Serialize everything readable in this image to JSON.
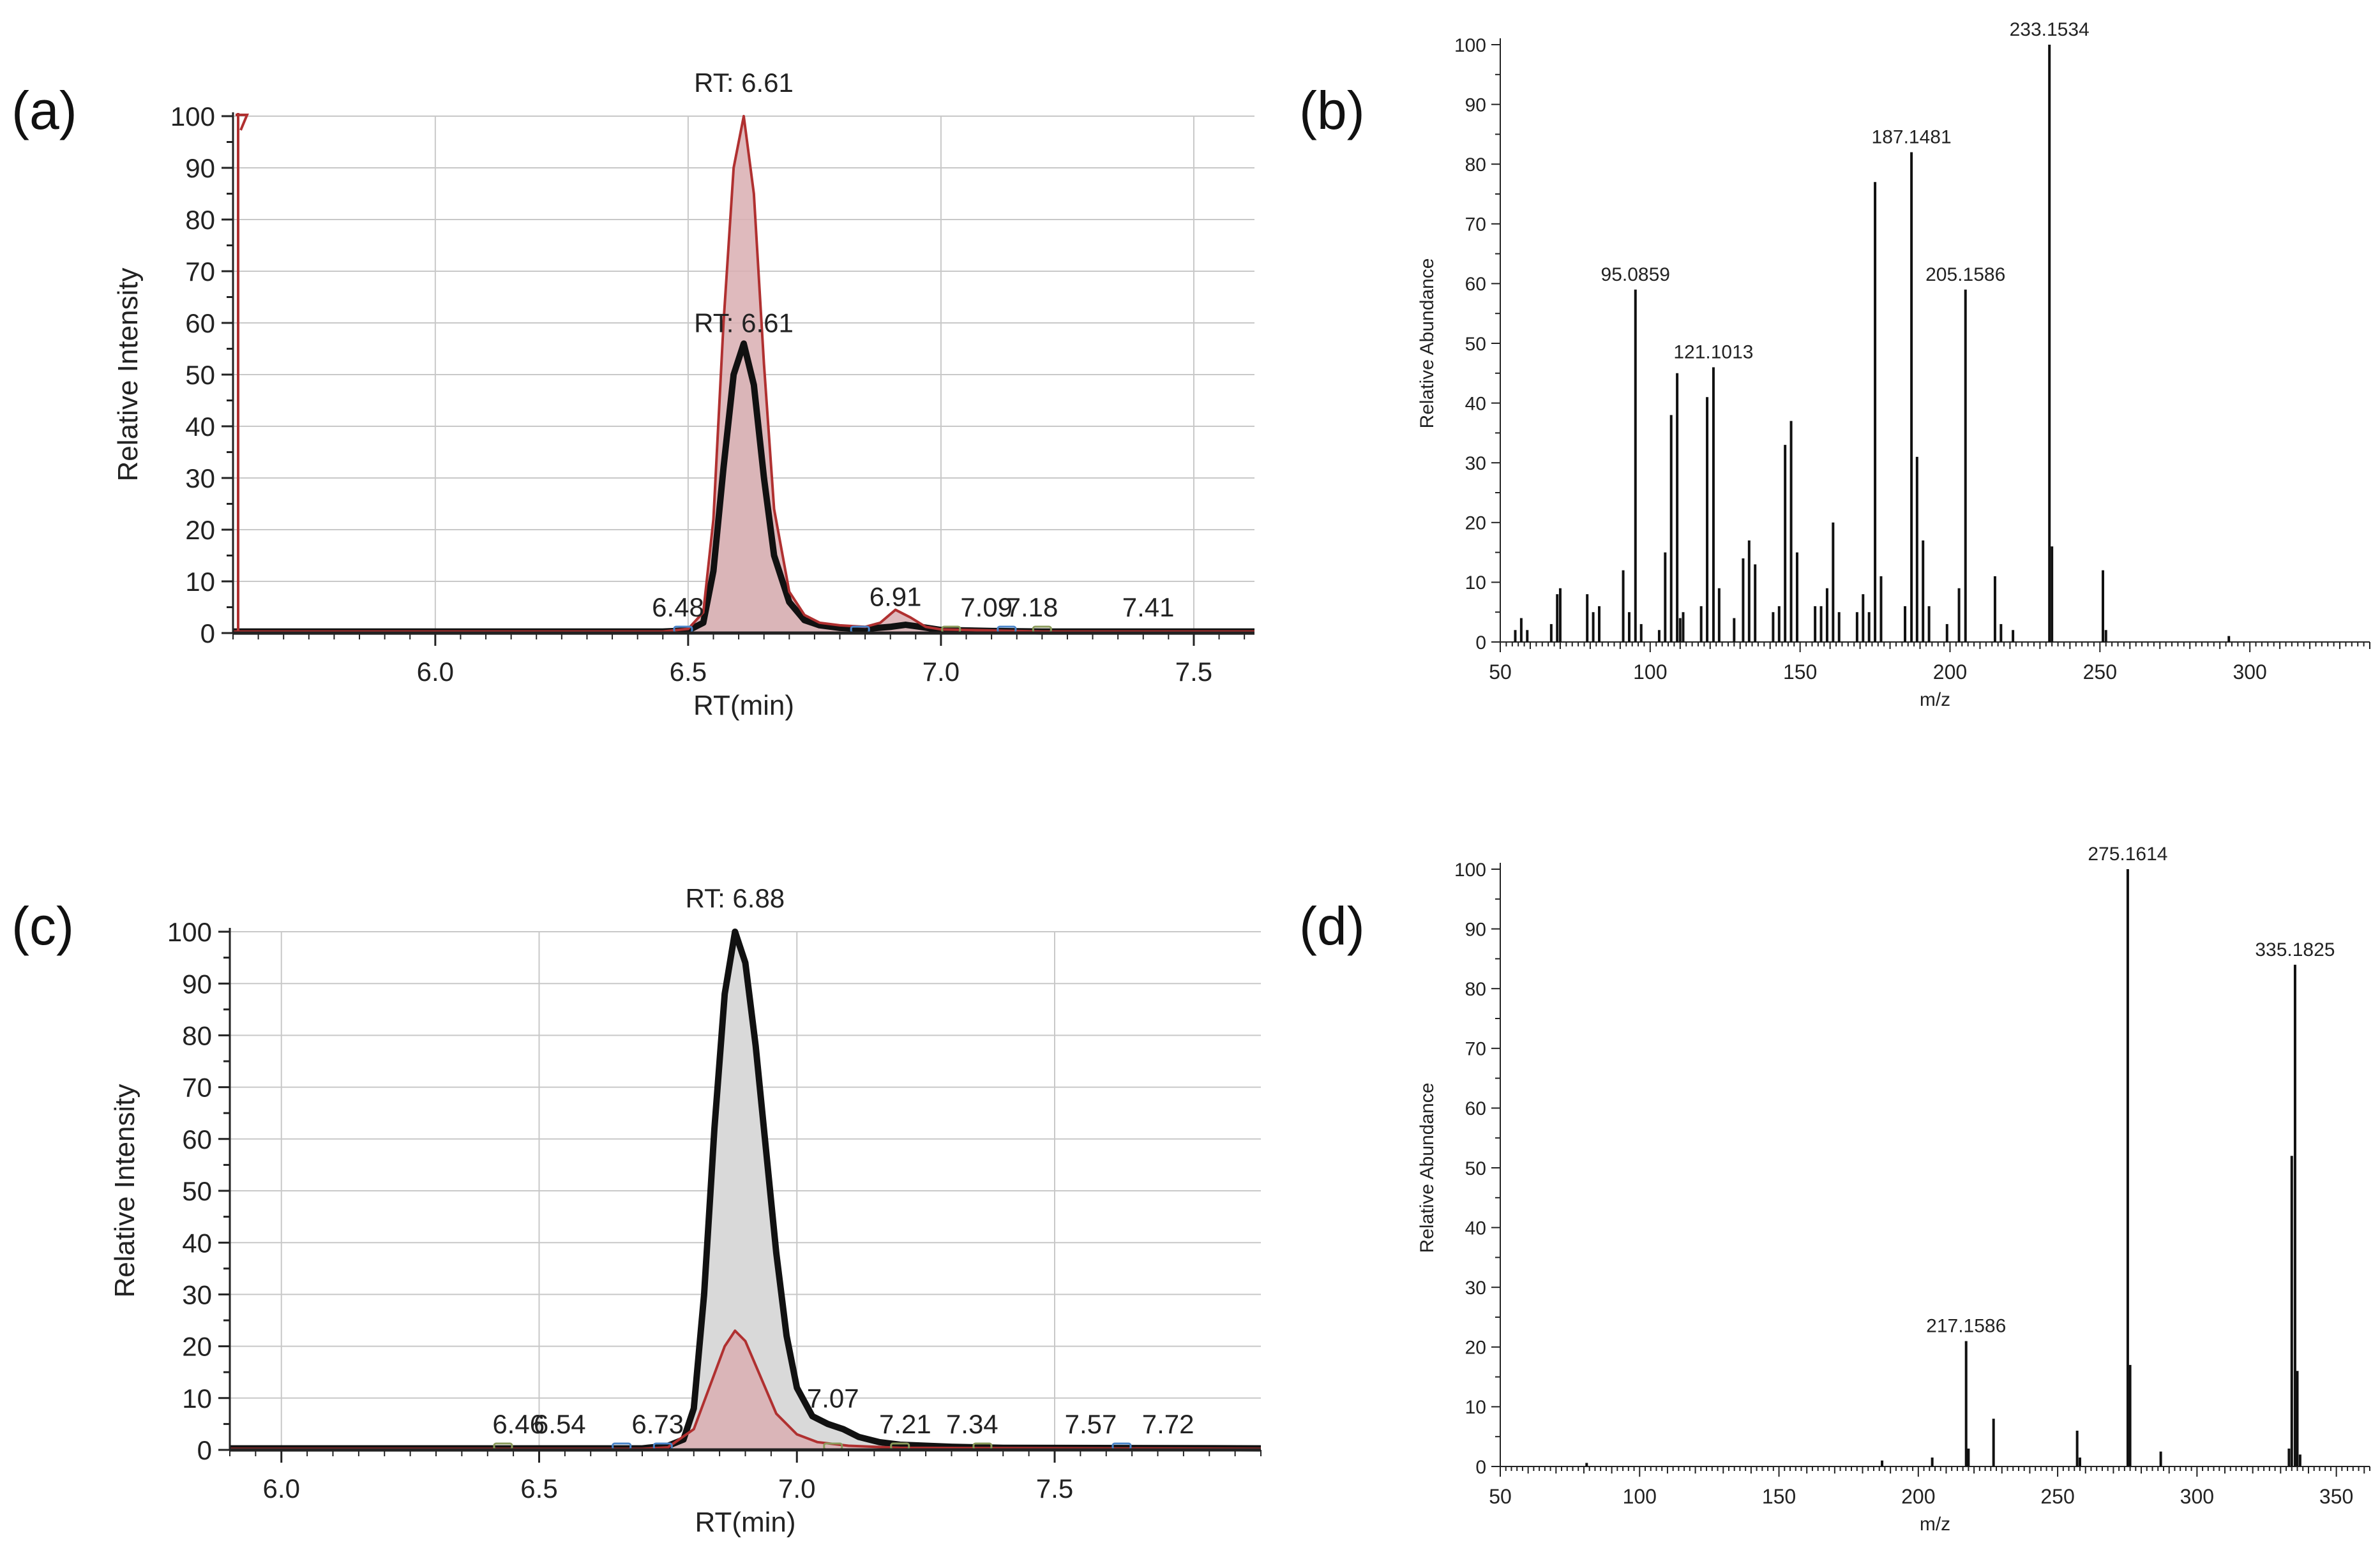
{
  "figure": {
    "panel_labels": [
      "(a)",
      "(b)",
      "(c)",
      "(d)"
    ]
  },
  "colors": {
    "black_trace": "#111111",
    "red_trace": "#b03030",
    "red_fill": "#d9aeb1",
    "grey_fill": "#d9d9d9",
    "grid": "#c8c8c8",
    "marker_blue": "#4a84c8",
    "marker_green": "#8a9a5b"
  },
  "chart_data": [
    {
      "id": "a",
      "type": "line",
      "title": "",
      "xlabel": "RT(min)",
      "ylabel": "Relative Intensity",
      "xlim": [
        5.6,
        7.62
      ],
      "ylim": [
        0,
        100
      ],
      "xticks": [
        6.0,
        6.5,
        7.0,
        7.5
      ],
      "yticks": [
        0,
        10,
        20,
        30,
        40,
        50,
        60,
        70,
        80,
        90,
        100
      ],
      "grid": true,
      "fill_front": "red",
      "series": [
        {
          "name": "black trace",
          "color": "#111111",
          "fill": "#d9d9d9",
          "width": 10,
          "x": [
            5.6,
            6.45,
            6.5,
            6.53,
            6.55,
            6.57,
            6.59,
            6.61,
            6.63,
            6.65,
            6.67,
            6.7,
            6.73,
            6.76,
            6.8,
            6.85,
            6.9,
            6.93,
            6.96,
            7.0,
            7.1,
            7.2,
            7.62
          ],
          "y": [
            0.3,
            0.3,
            0.5,
            2,
            12,
            32,
            50,
            56,
            48,
            30,
            15,
            6,
            2.5,
            1.5,
            1,
            0.8,
            1.2,
            1.6,
            1.2,
            0.6,
            0.4,
            0.3,
            0.3
          ]
        },
        {
          "name": "red trace",
          "color": "#b03030",
          "fill": "#d9aeb1",
          "width": 4,
          "x": [
            5.6,
            6.45,
            6.5,
            6.53,
            6.55,
            6.57,
            6.59,
            6.61,
            6.63,
            6.65,
            6.67,
            6.7,
            6.73,
            6.76,
            6.8,
            6.85,
            6.88,
            6.91,
            6.94,
            6.97,
            7.0,
            7.1,
            7.2,
            7.62
          ],
          "y": [
            0.3,
            0.3,
            0.8,
            4,
            22,
            60,
            90,
            100,
            85,
            52,
            24,
            8,
            3.5,
            2,
            1.5,
            1.2,
            2,
            4.5,
            3,
            1.2,
            0.7,
            0.5,
            0.3,
            0.3
          ]
        }
      ],
      "peak_labels": [
        {
          "text": "RT: 6.61",
          "x": 6.61,
          "y": 100
        },
        {
          "text": "RT: 6.61",
          "x": 6.61,
          "y": 56
        },
        {
          "text": "6.48",
          "x": 6.48,
          "y": 1
        },
        {
          "text": "6.91",
          "x": 6.91,
          "y": 3
        },
        {
          "text": "7.09",
          "x": 7.09,
          "y": 1
        },
        {
          "text": "7.18",
          "x": 7.18,
          "y": 1
        },
        {
          "text": "7.41",
          "x": 7.41,
          "y": 1
        }
      ],
      "baseline_markers": [
        {
          "x": 6.49,
          "color": "blue"
        },
        {
          "x": 6.84,
          "color": "blue"
        },
        {
          "x": 7.13,
          "color": "blue"
        },
        {
          "x": 7.2,
          "color": "green"
        },
        {
          "x": 7.02,
          "color": "green"
        }
      ]
    },
    {
      "id": "b",
      "type": "bar",
      "title": "",
      "xlabel": "m/z",
      "ylabel": "Relative Abundance",
      "xlim": [
        50,
        340
      ],
      "ylim": [
        0,
        100
      ],
      "xticks": [
        50,
        100,
        150,
        200,
        250,
        300
      ],
      "yticks": [
        0,
        10,
        20,
        30,
        40,
        50,
        60,
        70,
        80,
        90,
        100
      ],
      "grid": false,
      "peaks": [
        {
          "mz": 55,
          "i": 2
        },
        {
          "mz": 57,
          "i": 4
        },
        {
          "mz": 59,
          "i": 2
        },
        {
          "mz": 67,
          "i": 3
        },
        {
          "mz": 69,
          "i": 8
        },
        {
          "mz": 70,
          "i": 9
        },
        {
          "mz": 79,
          "i": 8
        },
        {
          "mz": 81,
          "i": 5
        },
        {
          "mz": 83,
          "i": 6
        },
        {
          "mz": 91,
          "i": 12
        },
        {
          "mz": 93,
          "i": 5
        },
        {
          "mz": 95.0859,
          "i": 59,
          "label": "95.0859"
        },
        {
          "mz": 97,
          "i": 3
        },
        {
          "mz": 103,
          "i": 2
        },
        {
          "mz": 105,
          "i": 15
        },
        {
          "mz": 107,
          "i": 38
        },
        {
          "mz": 109,
          "i": 45
        },
        {
          "mz": 110,
          "i": 4
        },
        {
          "mz": 111,
          "i": 5
        },
        {
          "mz": 117,
          "i": 6
        },
        {
          "mz": 119,
          "i": 41
        },
        {
          "mz": 121.1013,
          "i": 46,
          "label": "121.1013"
        },
        {
          "mz": 123,
          "i": 9
        },
        {
          "mz": 128,
          "i": 4
        },
        {
          "mz": 131,
          "i": 14
        },
        {
          "mz": 133,
          "i": 17
        },
        {
          "mz": 135,
          "i": 13
        },
        {
          "mz": 141,
          "i": 5
        },
        {
          "mz": 143,
          "i": 6
        },
        {
          "mz": 145,
          "i": 33
        },
        {
          "mz": 147,
          "i": 37
        },
        {
          "mz": 149,
          "i": 15
        },
        {
          "mz": 155,
          "i": 6
        },
        {
          "mz": 157,
          "i": 6
        },
        {
          "mz": 159,
          "i": 9
        },
        {
          "mz": 161,
          "i": 20
        },
        {
          "mz": 163,
          "i": 5
        },
        {
          "mz": 169,
          "i": 5
        },
        {
          "mz": 171,
          "i": 8
        },
        {
          "mz": 173,
          "i": 5
        },
        {
          "mz": 175,
          "i": 77
        },
        {
          "mz": 177,
          "i": 11
        },
        {
          "mz": 185,
          "i": 6
        },
        {
          "mz": 187.1481,
          "i": 82,
          "label": "187.1481"
        },
        {
          "mz": 189,
          "i": 31
        },
        {
          "mz": 191,
          "i": 17
        },
        {
          "mz": 193,
          "i": 6
        },
        {
          "mz": 199,
          "i": 3
        },
        {
          "mz": 203,
          "i": 9
        },
        {
          "mz": 205.1586,
          "i": 59,
          "label": "205.1586"
        },
        {
          "mz": 215,
          "i": 11
        },
        {
          "mz": 217,
          "i": 3
        },
        {
          "mz": 221,
          "i": 2
        },
        {
          "mz": 233.1534,
          "i": 100,
          "label": "233.1534"
        },
        {
          "mz": 234,
          "i": 16
        },
        {
          "mz": 251,
          "i": 12
        },
        {
          "mz": 252,
          "i": 2
        },
        {
          "mz": 293,
          "i": 1
        }
      ]
    },
    {
      "id": "c",
      "type": "line",
      "title": "",
      "xlabel": "RT(min)",
      "ylabel": "Relative Intensity",
      "xlim": [
        5.9,
        7.9
      ],
      "ylim": [
        0,
        100
      ],
      "xticks": [
        6.0,
        6.5,
        7.0,
        7.5
      ],
      "yticks": [
        0,
        10,
        20,
        30,
        40,
        50,
        60,
        70,
        80,
        90,
        100
      ],
      "grid": true,
      "fill_front": "red",
      "series": [
        {
          "name": "black trace",
          "color": "#111111",
          "fill": "#d9d9d9",
          "width": 10,
          "x": [
            5.9,
            6.7,
            6.75,
            6.78,
            6.8,
            6.82,
            6.84,
            6.86,
            6.88,
            6.9,
            6.92,
            6.94,
            6.96,
            6.98,
            7.0,
            7.03,
            7.06,
            7.09,
            7.12,
            7.16,
            7.2,
            7.3,
            7.4,
            7.9
          ],
          "y": [
            0.3,
            0.3,
            0.8,
            2,
            8,
            30,
            62,
            88,
            100,
            94,
            78,
            58,
            38,
            22,
            12,
            6.5,
            5,
            4,
            2.5,
            1.5,
            1,
            0.6,
            0.4,
            0.3
          ]
        },
        {
          "name": "red trace",
          "color": "#b03030",
          "fill": "#d9aeb1",
          "width": 4,
          "x": [
            5.9,
            6.7,
            6.75,
            6.8,
            6.83,
            6.86,
            6.88,
            6.9,
            6.93,
            6.96,
            7.0,
            7.04,
            7.1,
            7.2,
            7.9
          ],
          "y": [
            0.2,
            0.2,
            0.5,
            4,
            12,
            20,
            23,
            21,
            14,
            7,
            3,
            1.5,
            0.8,
            0.4,
            0.2
          ]
        }
      ],
      "peak_labels": [
        {
          "text": "RT: 6.88",
          "x": 6.88,
          "y": 100
        },
        {
          "text": "6.46",
          "x": 6.46,
          "y": 1
        },
        {
          "text": "6.54",
          "x": 6.54,
          "y": 1
        },
        {
          "text": "6.73",
          "x": 6.73,
          "y": 1
        },
        {
          "text": "7.07",
          "x": 7.07,
          "y": 6
        },
        {
          "text": "7.21",
          "x": 7.21,
          "y": 1
        },
        {
          "text": "7.34",
          "x": 7.34,
          "y": 1
        },
        {
          "text": "7.57",
          "x": 7.57,
          "y": 1
        },
        {
          "text": "7.72",
          "x": 7.72,
          "y": 1
        }
      ],
      "baseline_markers": [
        {
          "x": 6.43,
          "color": "green"
        },
        {
          "x": 6.66,
          "color": "blue"
        },
        {
          "x": 6.74,
          "color": "blue"
        },
        {
          "x": 7.07,
          "color": "green"
        },
        {
          "x": 7.2,
          "color": "green"
        },
        {
          "x": 7.36,
          "color": "green"
        },
        {
          "x": 7.63,
          "color": "blue"
        }
      ]
    },
    {
      "id": "d",
      "type": "bar",
      "title": "",
      "xlabel": "m/z",
      "ylabel": "Relative Abundance",
      "xlim": [
        50,
        362
      ],
      "ylim": [
        0,
        100
      ],
      "xticks": [
        50,
        100,
        150,
        200,
        250,
        300,
        350
      ],
      "yticks": [
        0,
        10,
        20,
        30,
        40,
        50,
        60,
        70,
        80,
        90,
        100
      ],
      "grid": false,
      "peaks": [
        {
          "mz": 81,
          "i": 0.6
        },
        {
          "mz": 187,
          "i": 1
        },
        {
          "mz": 205,
          "i": 1.5
        },
        {
          "mz": 217.1586,
          "i": 21,
          "label": "217.1586"
        },
        {
          "mz": 218,
          "i": 3
        },
        {
          "mz": 227,
          "i": 8
        },
        {
          "mz": 257,
          "i": 6
        },
        {
          "mz": 258,
          "i": 1.5
        },
        {
          "mz": 275.1614,
          "i": 100,
          "label": "275.1614"
        },
        {
          "mz": 276,
          "i": 17
        },
        {
          "mz": 287,
          "i": 2.5
        },
        {
          "mz": 333,
          "i": 3
        },
        {
          "mz": 334,
          "i": 52
        },
        {
          "mz": 335.1825,
          "i": 84,
          "label": "335.1825"
        },
        {
          "mz": 336,
          "i": 16
        },
        {
          "mz": 337,
          "i": 2
        }
      ]
    }
  ]
}
